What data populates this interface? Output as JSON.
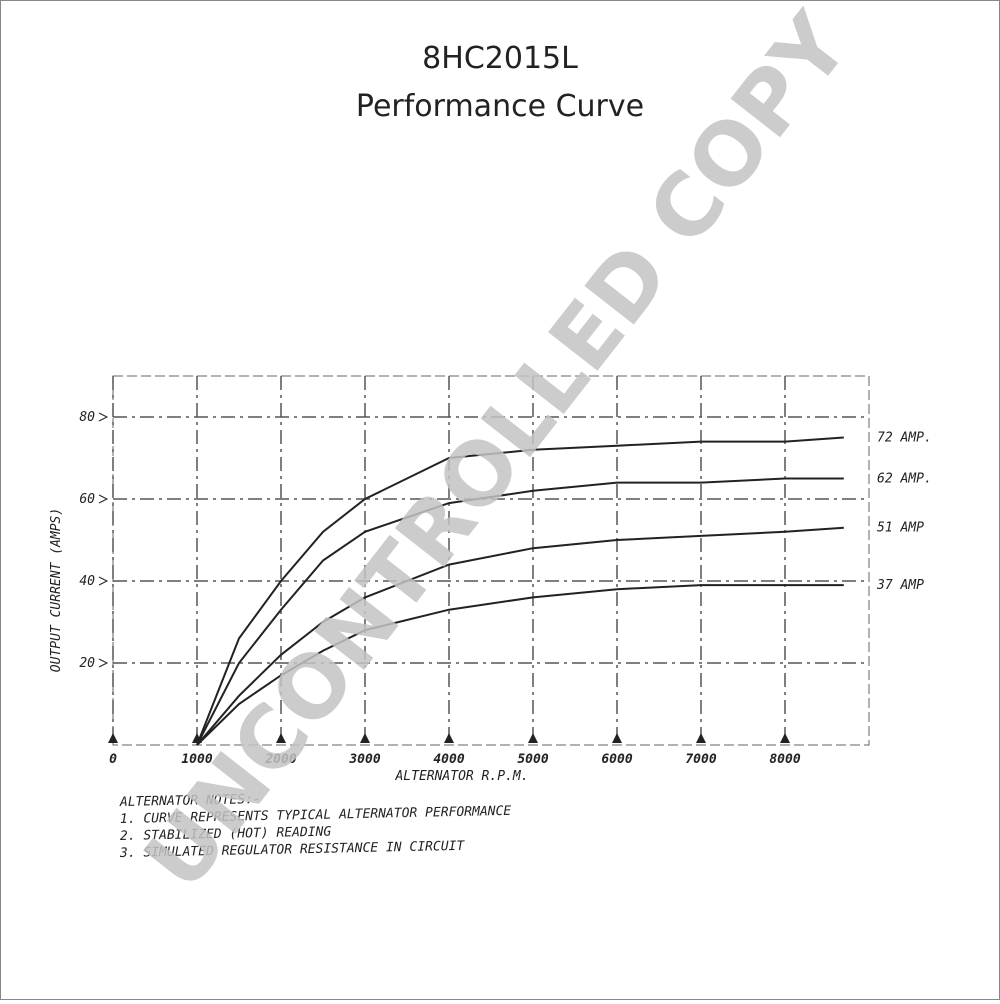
{
  "chart_data": {
    "type": "line",
    "title": "8HC2015L",
    "subtitle": "Performance Curve",
    "x_label": "ALTERNATOR R.P.M.",
    "y_label": "OUTPUT CURRENT (AMPS)",
    "x": [
      1000,
      1500,
      2000,
      2500,
      3000,
      4000,
      5000,
      6000,
      7000,
      8000,
      8700
    ],
    "series": [
      {
        "name": "72 AMP.",
        "color": "#222222",
        "values": [
          0,
          26,
          40,
          52,
          60,
          70,
          72,
          73,
          74,
          74,
          75
        ]
      },
      {
        "name": "62 AMP.",
        "color": "#222222",
        "values": [
          0,
          20,
          33,
          45,
          52,
          59,
          62,
          64,
          64,
          65,
          65
        ]
      },
      {
        "name": "51 AMP",
        "color": "#222222",
        "values": [
          0,
          12,
          22,
          30,
          36,
          44,
          48,
          50,
          51,
          52,
          53
        ]
      },
      {
        "name": "37 AMP",
        "color": "#222222",
        "values": [
          0,
          10,
          17,
          23,
          28,
          33,
          36,
          38,
          39,
          39,
          39
        ]
      }
    ],
    "xlim": [
      0,
      9000
    ],
    "ylim": [
      0,
      90
    ],
    "xticks": [
      0,
      1000,
      2000,
      3000,
      4000,
      5000,
      6000,
      7000,
      8000
    ],
    "yticks": [
      20,
      40,
      60,
      80
    ],
    "grid": true,
    "notes": [
      "ALTERNATOR NOTES:-",
      "1. CURVE REPRESENTS TYPICAL ALTERNATOR PERFORMANCE",
      "2. STABILIZED (HOT) READING",
      "3. SIMULATED REGULATOR RESISTANCE IN CIRCUIT"
    ],
    "watermark": "UNCONTROLLED COPY"
  }
}
